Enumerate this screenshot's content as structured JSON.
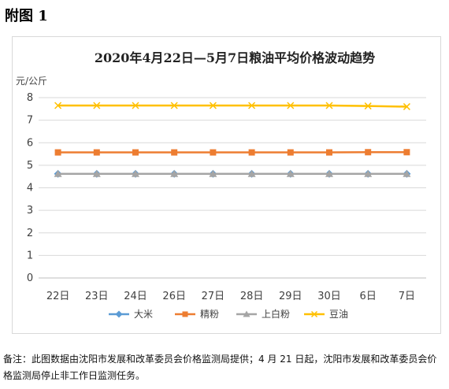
{
  "heading": "附图 1",
  "note": "备注：此图数据由沈阳市发展和改革委员会价格监测局提供；4 月 21 日起，沈阳市发展和改革委员会价格监测局停止非工作日监测任务。",
  "chart_data": {
    "type": "line",
    "title": "2020年4月22日—5月7日粮油平均价格波动趋势",
    "ylabel": "元/公斤",
    "xlabel": "",
    "categories": [
      "22日",
      "23日",
      "24日",
      "26日",
      "27日",
      "28日",
      "29日",
      "30日",
      "6日",
      "7日"
    ],
    "ylim": [
      0,
      8
    ],
    "yticks": [
      0,
      1,
      2,
      3,
      4,
      5,
      6,
      7,
      8
    ],
    "grid": true,
    "legend_position": "bottom",
    "series": [
      {
        "name": "大米",
        "color": "#5b9bd5",
        "marker": "diamond",
        "values": [
          4.62,
          4.62,
          4.62,
          4.62,
          4.62,
          4.62,
          4.62,
          4.62,
          4.62,
          4.62
        ]
      },
      {
        "name": "精粉",
        "color": "#ed7d31",
        "marker": "square",
        "values": [
          5.57,
          5.57,
          5.57,
          5.57,
          5.57,
          5.57,
          5.57,
          5.57,
          5.58,
          5.58
        ]
      },
      {
        "name": "上白粉",
        "color": "#a5a5a5",
        "marker": "triangle",
        "values": [
          4.62,
          4.62,
          4.62,
          4.62,
          4.62,
          4.62,
          4.62,
          4.62,
          4.62,
          4.62
        ]
      },
      {
        "name": "豆油",
        "color": "#ffc000",
        "marker": "x",
        "values": [
          7.65,
          7.65,
          7.65,
          7.65,
          7.65,
          7.65,
          7.65,
          7.65,
          7.63,
          7.6
        ]
      }
    ]
  }
}
